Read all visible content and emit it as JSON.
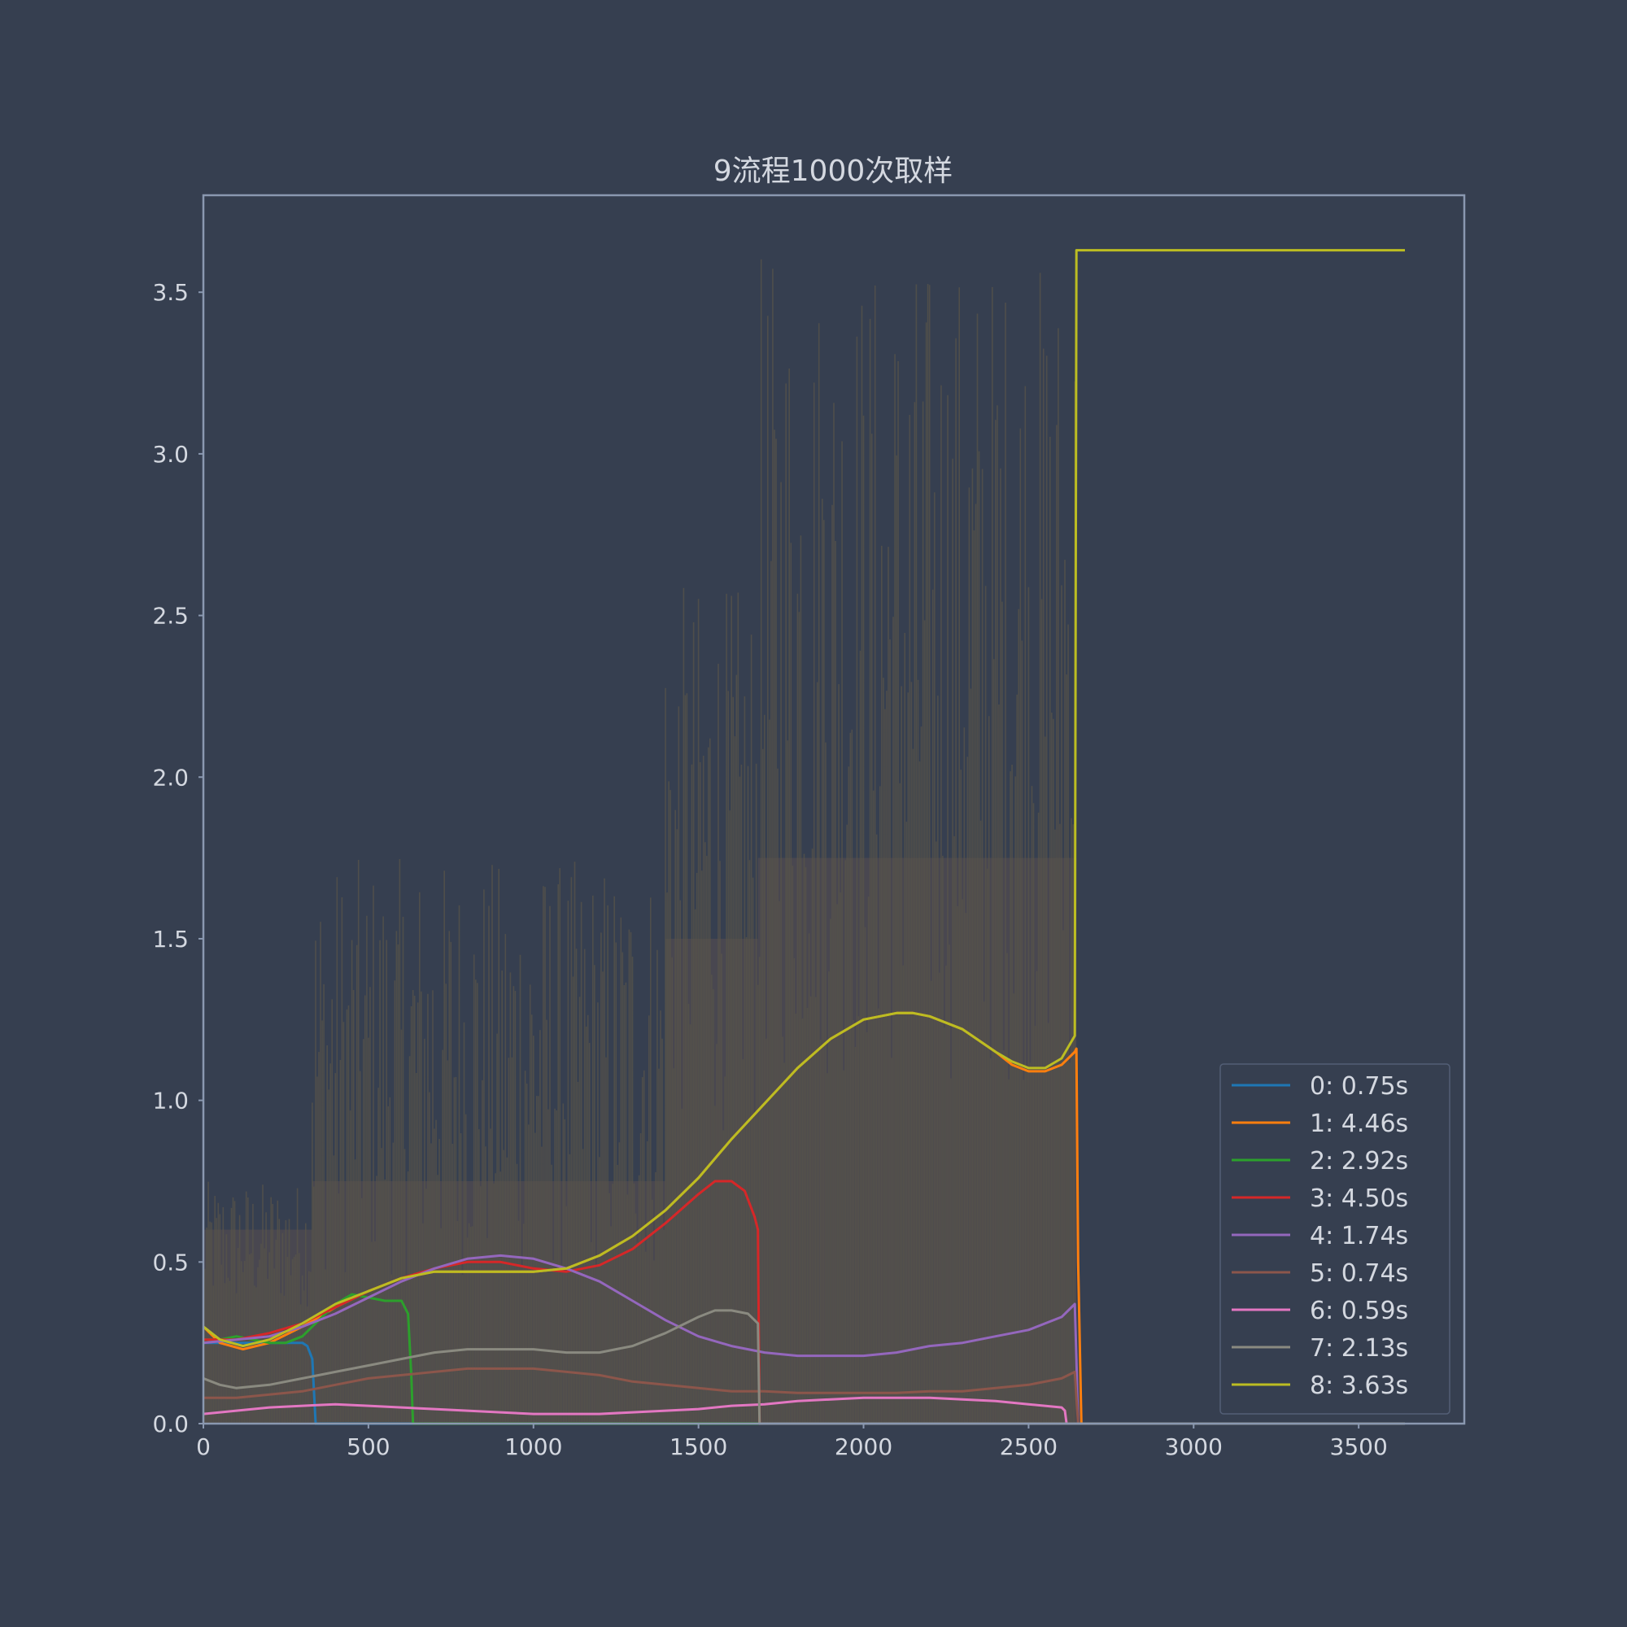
{
  "chart_data": {
    "type": "line",
    "title": "9流程1000次取样",
    "xlabel": "",
    "ylabel": "",
    "xlim": [
      0,
      3820
    ],
    "ylim": [
      0,
      3.8
    ],
    "x_ticks": [
      0,
      500,
      1000,
      1500,
      2000,
      2500,
      3000,
      3500
    ],
    "x_tick_labels": [
      "0",
      "500",
      "1000",
      "1500",
      "2000",
      "2500",
      "3000",
      "3500"
    ],
    "y_ticks": [
      0,
      0.5,
      1.0,
      1.5,
      2.0,
      2.5,
      3.0,
      3.5
    ],
    "y_tick_labels": [
      "0.0",
      "0.5",
      "1.0",
      "1.5",
      "2.0",
      "2.5",
      "3.0",
      "3.5"
    ],
    "grid": false,
    "legend_position": "lower-right",
    "background_color": "#363f50",
    "axes_color": "#8a98b0",
    "series": [
      {
        "name": "0:   0.75s",
        "color": "#1f77b4",
        "x": [
          0,
          100,
          200,
          300,
          315,
          330,
          340,
          3640
        ],
        "y": [
          0.25,
          0.25,
          0.25,
          0.25,
          0.24,
          0.2,
          0.0,
          0.0
        ]
      },
      {
        "name": "1:   4.46s",
        "color": "#ff7f0e",
        "x": [
          0,
          50,
          120,
          200,
          300,
          400,
          500,
          600,
          700,
          800,
          900,
          1000,
          1100,
          1200,
          1300,
          1400,
          1500,
          1600,
          1700,
          1800,
          1900,
          2000,
          2100,
          2150,
          2200,
          2300,
          2400,
          2450,
          2500,
          2550,
          2600,
          2640,
          2645,
          2650,
          2660,
          3640
        ],
        "y": [
          0.3,
          0.25,
          0.23,
          0.25,
          0.3,
          0.36,
          0.41,
          0.45,
          0.47,
          0.47,
          0.47,
          0.47,
          0.48,
          0.52,
          0.58,
          0.66,
          0.76,
          0.88,
          0.99,
          1.1,
          1.19,
          1.25,
          1.27,
          1.27,
          1.26,
          1.22,
          1.15,
          1.11,
          1.09,
          1.09,
          1.11,
          1.15,
          1.16,
          0.5,
          0.0,
          0.0
        ]
      },
      {
        "name": "2:   2.92s",
        "color": "#2ca02c",
        "x": [
          0,
          50,
          100,
          150,
          200,
          250,
          300,
          350,
          400,
          450,
          500,
          550,
          600,
          620,
          630,
          635,
          3640
        ],
        "y": [
          0.26,
          0.26,
          0.27,
          0.26,
          0.25,
          0.25,
          0.27,
          0.32,
          0.37,
          0.4,
          0.39,
          0.38,
          0.38,
          0.34,
          0.15,
          0.0,
          0.0
        ]
      },
      {
        "name": "3:   4.50s",
        "color": "#d62728",
        "x": [
          0,
          100,
          200,
          300,
          400,
          500,
          600,
          700,
          800,
          900,
          1000,
          1100,
          1200,
          1300,
          1400,
          1500,
          1550,
          1600,
          1640,
          1670,
          1680,
          1685,
          3640
        ],
        "y": [
          0.26,
          0.26,
          0.28,
          0.31,
          0.36,
          0.41,
          0.45,
          0.48,
          0.5,
          0.5,
          0.48,
          0.47,
          0.49,
          0.54,
          0.62,
          0.71,
          0.75,
          0.75,
          0.72,
          0.64,
          0.6,
          0.0,
          0.0
        ]
      },
      {
        "name": "4:   1.74s",
        "color": "#9467bd",
        "x": [
          0,
          100,
          200,
          300,
          400,
          500,
          600,
          700,
          800,
          900,
          1000,
          1100,
          1200,
          1300,
          1400,
          1500,
          1600,
          1700,
          1800,
          1900,
          2000,
          2100,
          2200,
          2300,
          2400,
          2500,
          2600,
          2640,
          2645,
          2650,
          3640
        ],
        "y": [
          0.25,
          0.26,
          0.27,
          0.3,
          0.34,
          0.39,
          0.44,
          0.48,
          0.51,
          0.52,
          0.51,
          0.48,
          0.44,
          0.38,
          0.32,
          0.27,
          0.24,
          0.22,
          0.21,
          0.21,
          0.21,
          0.22,
          0.24,
          0.25,
          0.27,
          0.29,
          0.33,
          0.37,
          0.2,
          0.0,
          0.0
        ]
      },
      {
        "name": "5:   0.74s",
        "color": "#8c564b",
        "x": [
          0,
          100,
          200,
          300,
          400,
          500,
          600,
          700,
          800,
          900,
          1000,
          1100,
          1200,
          1300,
          1400,
          1500,
          1600,
          1700,
          1800,
          1900,
          2000,
          2100,
          2200,
          2300,
          2400,
          2500,
          2600,
          2640,
          2645,
          2650,
          3640
        ],
        "y": [
          0.08,
          0.08,
          0.09,
          0.1,
          0.12,
          0.14,
          0.15,
          0.16,
          0.17,
          0.17,
          0.17,
          0.16,
          0.15,
          0.13,
          0.12,
          0.11,
          0.1,
          0.1,
          0.095,
          0.095,
          0.095,
          0.095,
          0.1,
          0.1,
          0.11,
          0.12,
          0.14,
          0.16,
          0.08,
          0.0,
          0.0
        ]
      },
      {
        "name": "6:   0.59s",
        "color": "#e377c2",
        "x": [
          0,
          100,
          200,
          300,
          400,
          500,
          600,
          700,
          800,
          900,
          1000,
          1100,
          1200,
          1300,
          1400,
          1500,
          1600,
          1700,
          1800,
          1900,
          2000,
          2100,
          2200,
          2300,
          2400,
          2500,
          2600,
          2610,
          2615,
          3640
        ],
        "y": [
          0.03,
          0.04,
          0.05,
          0.055,
          0.06,
          0.055,
          0.05,
          0.045,
          0.04,
          0.035,
          0.03,
          0.03,
          0.03,
          0.035,
          0.04,
          0.045,
          0.055,
          0.06,
          0.07,
          0.075,
          0.08,
          0.08,
          0.08,
          0.075,
          0.07,
          0.06,
          0.05,
          0.04,
          0.0,
          0.0
        ]
      },
      {
        "name": "7:   2.13s",
        "color": "#8a8a80",
        "x": [
          0,
          50,
          100,
          200,
          300,
          400,
          500,
          600,
          700,
          800,
          900,
          1000,
          1100,
          1200,
          1300,
          1400,
          1500,
          1550,
          1600,
          1650,
          1680,
          1685,
          3640
        ],
        "y": [
          0.14,
          0.12,
          0.11,
          0.12,
          0.14,
          0.16,
          0.18,
          0.2,
          0.22,
          0.23,
          0.23,
          0.23,
          0.22,
          0.22,
          0.24,
          0.28,
          0.33,
          0.35,
          0.35,
          0.34,
          0.31,
          0.0,
          0.0
        ]
      },
      {
        "name": "8:   3.63s",
        "color": "#bcbd22",
        "x": [
          0,
          50,
          120,
          200,
          300,
          400,
          500,
          600,
          700,
          800,
          900,
          1000,
          1100,
          1200,
          1300,
          1400,
          1500,
          1600,
          1700,
          1800,
          1900,
          2000,
          2100,
          2150,
          2200,
          2300,
          2400,
          2450,
          2500,
          2550,
          2600,
          2640,
          2645,
          2650,
          3640
        ],
        "y": [
          0.3,
          0.26,
          0.24,
          0.26,
          0.31,
          0.37,
          0.41,
          0.45,
          0.47,
          0.47,
          0.47,
          0.47,
          0.48,
          0.52,
          0.58,
          0.66,
          0.76,
          0.88,
          0.99,
          1.1,
          1.19,
          1.25,
          1.27,
          1.27,
          1.26,
          1.22,
          1.15,
          1.12,
          1.1,
          1.1,
          1.13,
          1.2,
          3.63,
          3.63,
          3.63
        ]
      }
    ],
    "noise_band": {
      "description_segments": [
        {
          "x_start": 0,
          "x_end": 330,
          "base": 0.6,
          "peak": 0.75
        },
        {
          "x_start": 330,
          "x_end": 1400,
          "base": 0.75,
          "peak": 1.75
        },
        {
          "x_start": 1400,
          "x_end": 1680,
          "base": 1.5,
          "peak": 2.6
        },
        {
          "x_start": 1680,
          "x_end": 2645,
          "base": 1.75,
          "peak": 3.62
        }
      ]
    }
  }
}
